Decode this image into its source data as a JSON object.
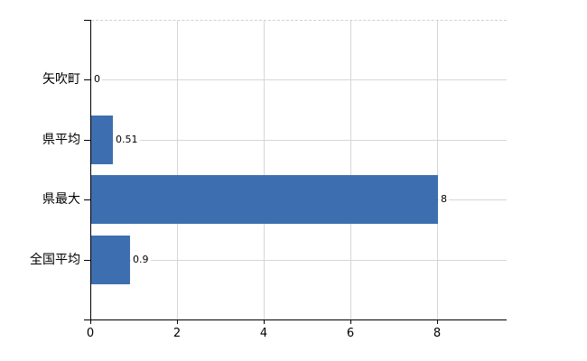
{
  "chart_data": {
    "type": "bar",
    "orientation": "horizontal",
    "title": "",
    "xlabel": "",
    "ylabel": "",
    "categories": [
      "矢吹町",
      "県平均",
      "県最大",
      "全国平均"
    ],
    "values": [
      0,
      0.51,
      8,
      0.9
    ],
    "value_labels": [
      "0",
      "0.51",
      "8",
      "0.9"
    ],
    "xlim": [
      0,
      9.58
    ],
    "xtick_values": [
      0,
      2,
      4,
      6,
      8
    ],
    "xtick_labels": [
      "0",
      "2",
      "4",
      "6",
      "8"
    ],
    "grid": true,
    "legend": false,
    "colors": {
      "bar": "#3D6FB0",
      "gridline": "#D6D6D6",
      "top_border": "#D0D0D0",
      "axis": "#000000",
      "text": "#000000",
      "background": "#FFFFFF"
    }
  }
}
